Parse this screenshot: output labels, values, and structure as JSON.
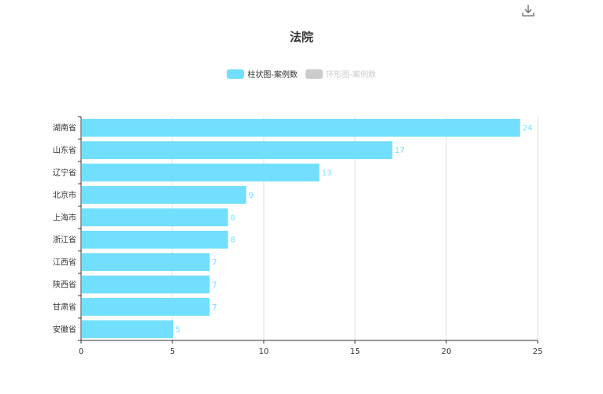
{
  "title": "法院",
  "toolbar": {
    "download_icon": "download-icon"
  },
  "legend": [
    {
      "label": "柱状图-案例数",
      "color": "#73dfff",
      "active": true
    },
    {
      "label": "环形图-案例数",
      "color": "#cccccc",
      "active": false
    }
  ],
  "chart_data": {
    "type": "bar",
    "orientation": "horizontal",
    "title": "法院",
    "categories": [
      "湖南省",
      "山东省",
      "辽宁省",
      "北京市",
      "上海市",
      "浙江省",
      "江西省",
      "陕西省",
      "甘肃省",
      "安徽省"
    ],
    "series": [
      {
        "name": "柱状图-案例数",
        "values": [
          24,
          17,
          13,
          9,
          8,
          8,
          7,
          7,
          7,
          5
        ]
      }
    ],
    "xlim": [
      0,
      25
    ],
    "xticks": [
      "0",
      "5",
      "10",
      "15",
      "20",
      "25"
    ],
    "grid": true,
    "legend_position": "top-center",
    "colors": {
      "bar": "#73dfff",
      "label": "#73dfff",
      "axis": "#333333",
      "grid": "#e0e0e0"
    }
  }
}
